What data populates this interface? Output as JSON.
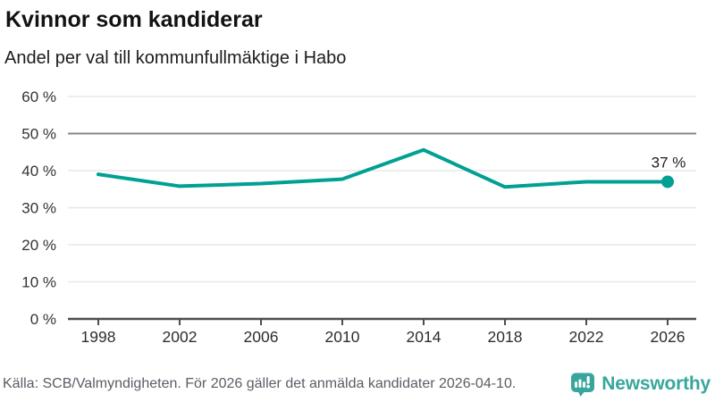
{
  "header": {
    "title": "Kvinnor som kandiderar",
    "subtitle": "Andel per val till kommunfullmäktige i Habo"
  },
  "chart_data": {
    "type": "line",
    "title": "Kvinnor som kandiderar",
    "subtitle": "Andel per val till kommunfullmäktige i Habo",
    "categories": [
      "1998",
      "2002",
      "2006",
      "2010",
      "2014",
      "2018",
      "2022",
      "2026"
    ],
    "values": [
      39,
      35.8,
      36.5,
      37.7,
      45.6,
      35.6,
      37,
      37
    ],
    "ylim": [
      0,
      60
    ],
    "ytick_step": 10,
    "ytick_suffix": " %",
    "xlabel": "",
    "ylabel": "",
    "grid": true,
    "reference_line": 50,
    "end_label": "37 %",
    "legend": "none"
  },
  "colors": {
    "line": "#00a093",
    "brand": "#38a69c",
    "grid": "#e8e8e8",
    "reference": "#888888",
    "axis": "#4d4d4d",
    "tick_text": "#333333",
    "data_label_text": "#1f1f1f",
    "footer_text": "#5c5c66"
  },
  "footer": {
    "source": "Källa: SCB/Valmyndigheten. För 2026 gäller det anmälda kandidater 2026-04-10.",
    "brand": "Newsworthy"
  }
}
